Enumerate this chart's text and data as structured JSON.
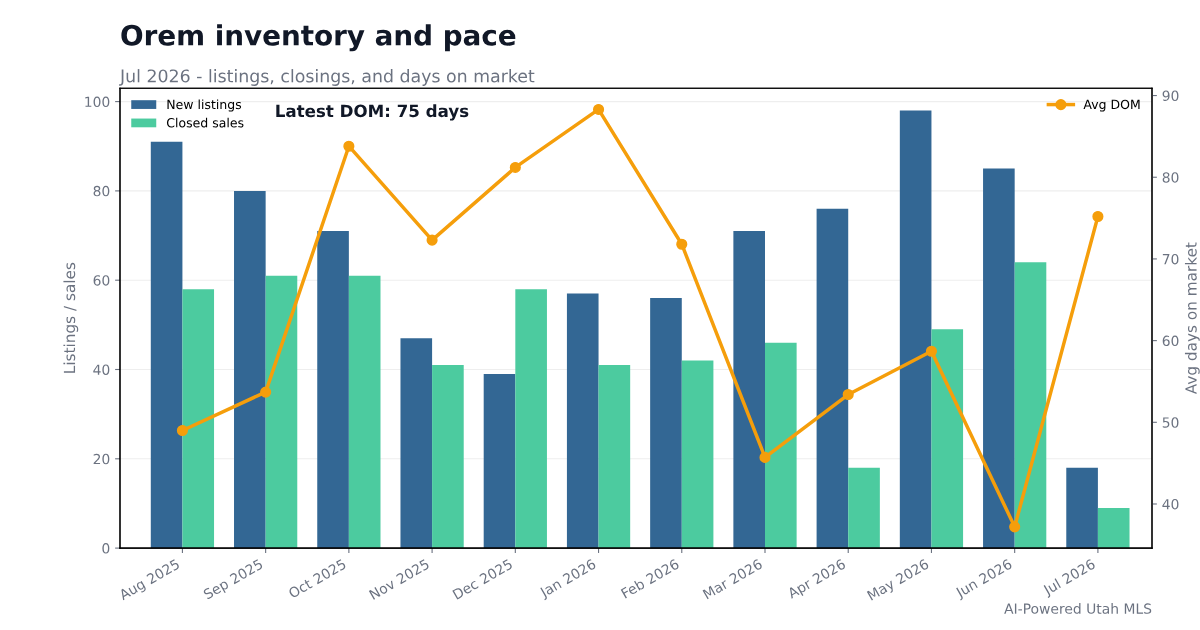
{
  "chart_data": {
    "type": "bar",
    "title": "Orem inventory and pace",
    "subtitle": "Jul 2026 - listings, closings, and days on market",
    "ylabel": "Listings / sales",
    "y2label": "Avg days on market",
    "categories": [
      "Aug 2025",
      "Sep 2025",
      "Oct 2025",
      "Nov 2025",
      "Dec 2025",
      "Jan 2026",
      "Feb 2026",
      "Mar 2026",
      "Apr 2026",
      "May 2026",
      "Jun 2026",
      "Jul 2026"
    ],
    "series": [
      {
        "name": "New listings",
        "color": "#336794",
        "values": [
          91,
          80,
          71,
          47,
          39,
          57,
          56,
          71,
          76,
          98,
          85,
          18
        ]
      },
      {
        "name": "Closed sales",
        "color": "#4ccb9f",
        "values": [
          58,
          61,
          61,
          41,
          58,
          41,
          42,
          46,
          18,
          49,
          64,
          9
        ]
      },
      {
        "name": "Avg DOM",
        "type": "line",
        "axis": "y2",
        "color": "#f59e0b",
        "marker": "circle",
        "values": [
          49.0,
          53.7,
          83.8,
          72.3,
          81.2,
          88.3,
          71.8,
          45.7,
          53.4,
          58.7,
          37.2,
          75.2
        ]
      }
    ],
    "ylim": [
      0,
      103
    ],
    "yticks": [
      0,
      20,
      40,
      60,
      80,
      100
    ],
    "y2lim": [
      34.6,
      90.9
    ],
    "y2ticks": [
      40,
      50,
      60,
      70,
      80,
      90
    ],
    "grid": "y",
    "legend": "top left",
    "annotations": [
      "Latest DOM: 75 days",
      "AI-Powered Utah MLS"
    ]
  }
}
